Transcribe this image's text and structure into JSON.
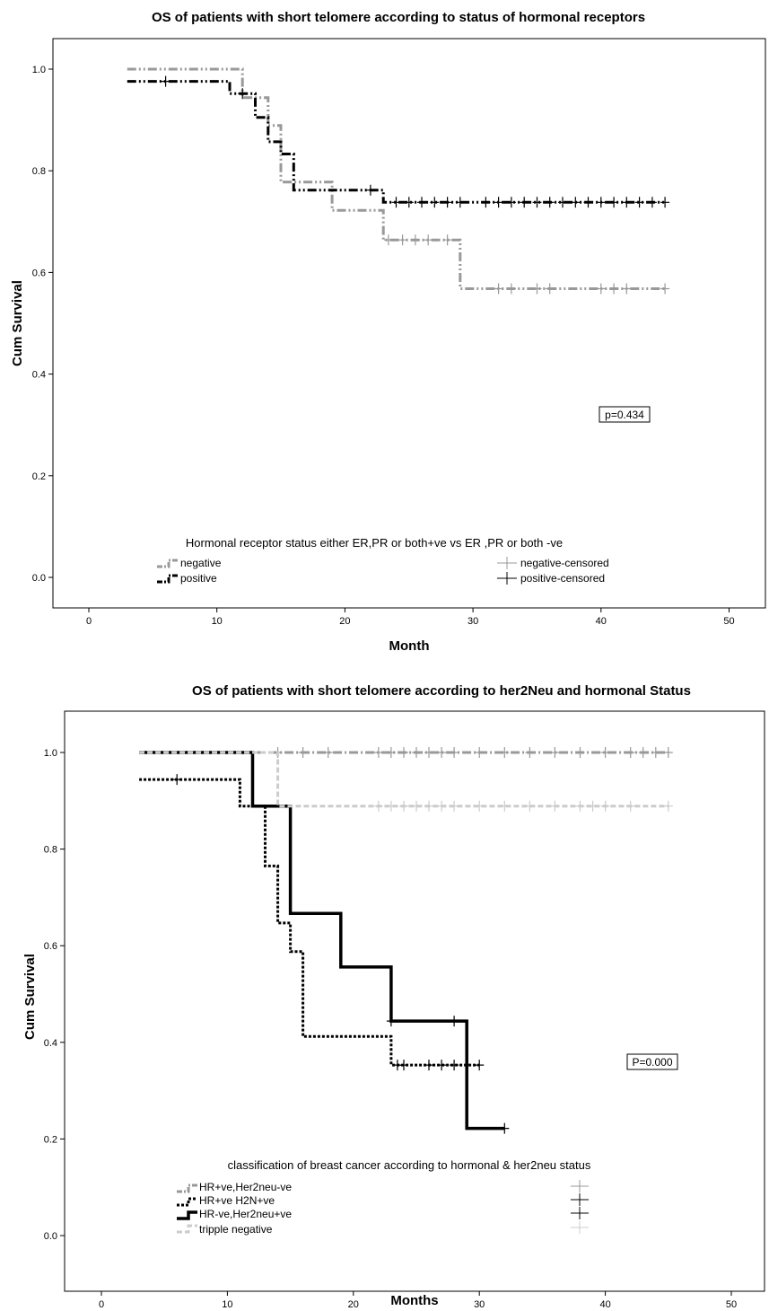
{
  "chart_data": [
    {
      "type": "line",
      "subtype": "kaplan-meier",
      "title": "OS of patients with short telomere according to  status of hormonal receptors",
      "xlabel": "Month",
      "ylabel": "Cum Survival",
      "xlim": [
        -3,
        53
      ],
      "ylim": [
        -0.06,
        1.06
      ],
      "xticks": [
        0,
        10,
        20,
        30,
        40,
        50
      ],
      "xtick_labels": [
        "0",
        "10",
        "20",
        "30",
        "40",
        "50"
      ],
      "yticks": [
        0.0,
        0.2,
        0.4,
        0.6,
        0.8,
        1.0
      ],
      "ytick_labels": [
        "0.0",
        "0.2",
        "0.4",
        "0.6",
        "0.8",
        "1.0"
      ],
      "grid": false,
      "legend_title": "Hormonal receptor status either ER,PR or both+ve vs  ER ,PR or both -ve",
      "annotation": "p=0.434",
      "series": [
        {
          "name": "negative",
          "censored_name": "negative-censored",
          "color": "#999999",
          "dash": "10,3,2,3,2,3",
          "width": 3,
          "steps": [
            [
              3,
              1.0
            ],
            [
              12,
              0.944
            ],
            [
              14,
              0.889
            ],
            [
              15,
              0.778
            ],
            [
              19,
              0.722
            ],
            [
              23,
              0.664
            ],
            [
              29,
              0.568
            ],
            [
              45,
              0.568
            ]
          ],
          "censored": [
            [
              23.4,
              0.664
            ],
            [
              24.5,
              0.664
            ],
            [
              25.5,
              0.664
            ],
            [
              26.5,
              0.664
            ],
            [
              28,
              0.664
            ],
            [
              32,
              0.568
            ],
            [
              33,
              0.568
            ],
            [
              35,
              0.568
            ],
            [
              36,
              0.568
            ],
            [
              40,
              0.568
            ],
            [
              41,
              0.568
            ],
            [
              42,
              0.568
            ],
            [
              45,
              0.568
            ]
          ]
        },
        {
          "name": "positive",
          "censored_name": "positive-censored",
          "color": "#000000",
          "dash": "10,3,2,3,2,3",
          "width": 3,
          "steps": [
            [
              3,
              0.976
            ],
            [
              11,
              0.952
            ],
            [
              13,
              0.905
            ],
            [
              14,
              0.857
            ],
            [
              15,
              0.833
            ],
            [
              16,
              0.762
            ],
            [
              23,
              0.738
            ],
            [
              45,
              0.738
            ]
          ],
          "censored": [
            [
              6,
              0.976
            ],
            [
              12,
              0.952
            ],
            [
              22,
              0.762
            ],
            [
              24,
              0.738
            ],
            [
              25,
              0.738
            ],
            [
              26,
              0.738
            ],
            [
              27,
              0.738
            ],
            [
              28,
              0.738
            ],
            [
              29,
              0.738
            ],
            [
              31,
              0.738
            ],
            [
              32,
              0.738
            ],
            [
              33,
              0.738
            ],
            [
              34,
              0.738
            ],
            [
              35,
              0.738
            ],
            [
              36,
              0.738
            ],
            [
              37,
              0.738
            ],
            [
              38,
              0.738
            ],
            [
              39,
              0.738
            ],
            [
              40,
              0.738
            ],
            [
              41,
              0.738
            ],
            [
              42,
              0.738
            ],
            [
              43,
              0.738
            ],
            [
              44,
              0.738
            ],
            [
              45,
              0.738
            ]
          ]
        }
      ]
    },
    {
      "type": "line",
      "subtype": "kaplan-meier",
      "title": "OS  of patients with short telomere according to her2Neu  and hormonal Status",
      "xlabel": "Months",
      "ylabel": "Cum Survival",
      "xlim": [
        -3,
        53
      ],
      "ylim": [
        -0.06,
        1.06
      ],
      "xticks": [
        0,
        10,
        20,
        30,
        40,
        50
      ],
      "xtick_labels": [
        "0",
        "10",
        "20",
        "30",
        "40",
        "50"
      ],
      "yticks": [
        0.0,
        0.2,
        0.4,
        0.6,
        0.8,
        1.0
      ],
      "ytick_labels": [
        "0.0",
        "0.2",
        "0.4",
        "0.6",
        "0.8",
        "1.0"
      ],
      "grid": false,
      "legend_title": "classification of  breast cancer according to hormonal & her2neu status",
      "annotation": "P=0.000",
      "series": [
        {
          "name": "HR+ve,Her2neu-ve",
          "color": "#999999",
          "dash": "10,3,2,3",
          "width": 3,
          "steps": [
            [
              3,
              1.0
            ],
            [
              45,
              1.0
            ]
          ],
          "censored": [
            [
              14,
              1.0
            ],
            [
              16,
              1.0
            ],
            [
              18,
              1.0
            ],
            [
              22,
              1.0
            ],
            [
              23,
              1.0
            ],
            [
              24,
              1.0
            ],
            [
              25,
              1.0
            ],
            [
              26,
              1.0
            ],
            [
              27,
              1.0
            ],
            [
              28,
              1.0
            ],
            [
              30,
              1.0
            ],
            [
              32,
              1.0
            ],
            [
              34,
              1.0
            ],
            [
              36,
              1.0
            ],
            [
              38,
              1.0
            ],
            [
              40,
              1.0
            ],
            [
              42,
              1.0
            ],
            [
              43,
              1.0
            ],
            [
              44,
              1.0
            ],
            [
              45,
              1.0
            ]
          ]
        },
        {
          "name": "HR+ve H2N+ve",
          "color": "#000000",
          "dash": "3,2",
          "width": 3,
          "steps": [
            [
              3,
              0.944
            ],
            [
              11,
              0.889
            ],
            [
              13,
              0.765
            ],
            [
              14,
              0.647
            ],
            [
              15,
              0.588
            ],
            [
              16,
              0.412
            ],
            [
              23,
              0.353
            ],
            [
              30,
              0.353
            ]
          ],
          "censored": [
            [
              6,
              0.944
            ],
            [
              23.5,
              0.353
            ],
            [
              24,
              0.353
            ],
            [
              26,
              0.353
            ],
            [
              27,
              0.353
            ],
            [
              28,
              0.353
            ],
            [
              30,
              0.353
            ]
          ]
        },
        {
          "name": "HR-ve,Her2neu+ve",
          "color": "#000000",
          "dash": "",
          "width": 3.5,
          "steps": [
            [
              3,
              1.0
            ],
            [
              12,
              0.889
            ],
            [
              15,
              0.667
            ],
            [
              19,
              0.556
            ],
            [
              23,
              0.444
            ],
            [
              29,
              0.222
            ],
            [
              32,
              0.222
            ]
          ],
          "censored": [
            [
              23,
              0.444
            ],
            [
              28,
              0.444
            ],
            [
              32,
              0.222
            ]
          ]
        },
        {
          "name": "tripple negative",
          "color": "#cccccc",
          "dash": "6,3",
          "width": 3,
          "steps": [
            [
              3,
              1.0
            ],
            [
              14,
              0.889
            ],
            [
              45,
              0.889
            ]
          ],
          "censored": [
            [
              22,
              0.889
            ],
            [
              23,
              0.889
            ],
            [
              24,
              0.889
            ],
            [
              25,
              0.889
            ],
            [
              26,
              0.889
            ],
            [
              27,
              0.889
            ],
            [
              28,
              0.889
            ],
            [
              30,
              0.889
            ],
            [
              32,
              0.889
            ],
            [
              34,
              0.889
            ],
            [
              36,
              0.889
            ],
            [
              38,
              0.889
            ],
            [
              39,
              0.889
            ],
            [
              40,
              0.889
            ],
            [
              42,
              0.889
            ],
            [
              45,
              0.889
            ]
          ]
        }
      ]
    }
  ]
}
